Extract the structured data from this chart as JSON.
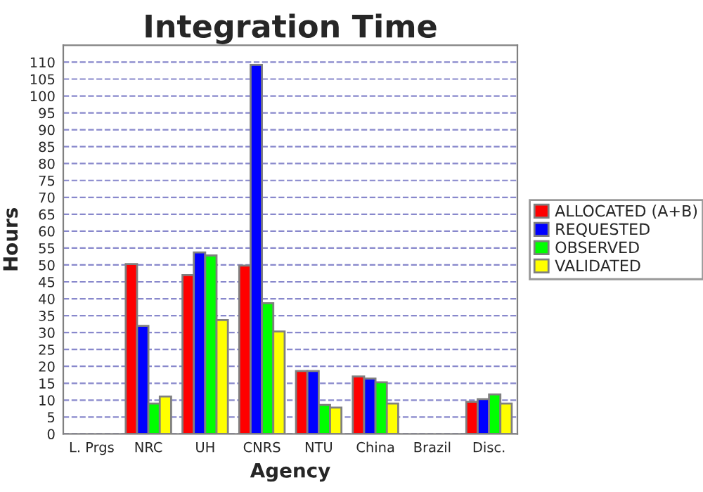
{
  "chart_data": {
    "type": "bar",
    "title": "Integration Time",
    "xlabel": "Agency",
    "ylabel": "Hours",
    "categories": [
      "L. Prgs",
      "NRC",
      "UH",
      "CNRS",
      "NTU",
      "China",
      "Brazil",
      "Disc."
    ],
    "series": [
      {
        "name": "ALLOCATED (A+B)",
        "color": "#ff0000",
        "values": [
          null,
          50.3,
          47,
          49.8,
          18.6,
          17,
          null,
          9.5
        ]
      },
      {
        "name": "REQUESTED",
        "color": "#0000ff",
        "values": [
          null,
          32,
          53.7,
          109.2,
          18.6,
          16.4,
          null,
          10.3
        ]
      },
      {
        "name": "OBSERVED",
        "color": "#00ff00",
        "values": [
          null,
          9,
          52.8,
          38.7,
          8.6,
          15.3,
          null,
          11.7
        ]
      },
      {
        "name": "VALIDATED",
        "color": "#ffff00",
        "values": [
          null,
          11.1,
          33.7,
          30.3,
          7.8,
          9,
          null,
          9
        ]
      }
    ],
    "ylim": [
      0,
      115
    ],
    "yticks": [
      0,
      5,
      10,
      15,
      20,
      25,
      30,
      35,
      40,
      45,
      50,
      55,
      60,
      65,
      70,
      75,
      80,
      85,
      90,
      95,
      100,
      105,
      110
    ],
    "grid": "y",
    "legend": "right"
  }
}
